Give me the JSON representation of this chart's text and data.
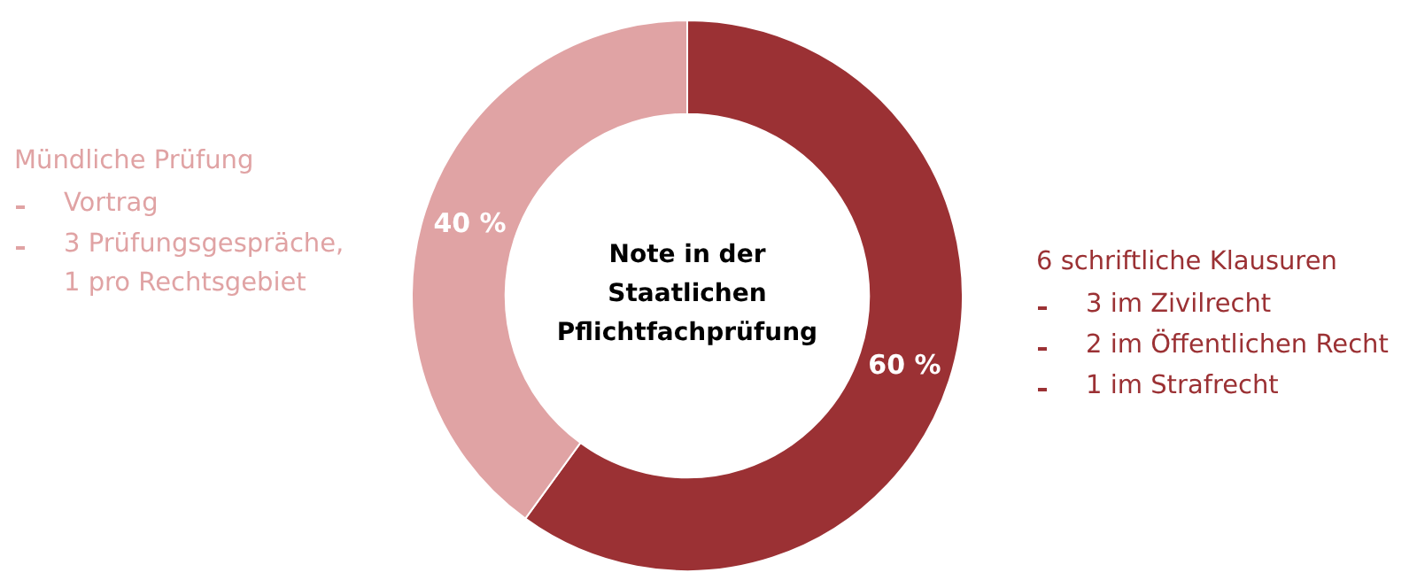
{
  "chart_data": {
    "type": "donut",
    "title": "Note in der Staatlichen Pflichtfachprüfung",
    "categories": [
      "6 schriftliche Klausuren",
      "Mündliche Prüfung"
    ],
    "values": [
      60,
      40
    ],
    "colors": [
      "#9b3134",
      "#e0a3a4"
    ],
    "value_labels": [
      "60 %",
      "40 %"
    ],
    "annotations": [
      {
        "text": "3 im Zivilrecht",
        "x": "6 schriftliche Klausuren"
      },
      {
        "text": "2 im Öffentlichen Recht",
        "x": "6 schriftliche Klausuren"
      },
      {
        "text": "1 im Strafrecht",
        "x": "6 schriftliche Klausuren"
      },
      {
        "text": "Vortrag",
        "x": "Mündliche Prüfung"
      },
      {
        "text": "3 Prüfungsgespräche,\n1 pro Rechtsgebiet",
        "x": "Mündliche Prüfung"
      }
    ]
  }
}
